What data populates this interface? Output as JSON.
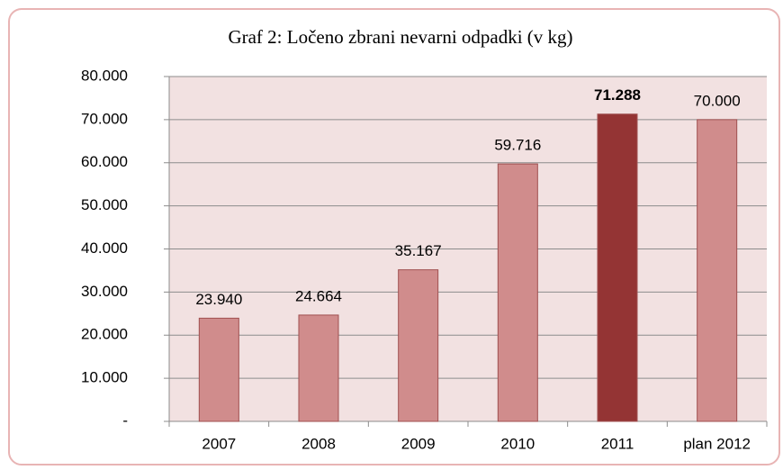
{
  "chart_data": {
    "type": "bar",
    "title": "Graf 2: Ločeno zbrani nevarni odpadki (v kg)",
    "categories": [
      "2007",
      "2008",
      "2009",
      "2010",
      "2011",
      "plan 2012"
    ],
    "values": [
      23940,
      24664,
      35167,
      59716,
      71288,
      70000
    ],
    "value_labels": [
      "23.940",
      "24.664",
      "35.167",
      "59.716",
      "71.288",
      "70.000"
    ],
    "colors": [
      "#d08c8c",
      "#d08c8c",
      "#d08c8c",
      "#d08c8c",
      "#943434",
      "#d08c8c"
    ],
    "ylim": [
      0,
      80000
    ],
    "yticks": [
      {
        "value": 0,
        "label": "-"
      },
      {
        "value": 10000,
        "label": "10.000"
      },
      {
        "value": 20000,
        "label": "20.000"
      },
      {
        "value": 30000,
        "label": "30.000"
      },
      {
        "value": 40000,
        "label": "40.000"
      },
      {
        "value": 50000,
        "label": "50.000"
      },
      {
        "value": 60000,
        "label": "60.000"
      },
      {
        "value": 70000,
        "label": "70.000"
      },
      {
        "value": 80000,
        "label": "80.000"
      }
    ],
    "grid": true
  }
}
